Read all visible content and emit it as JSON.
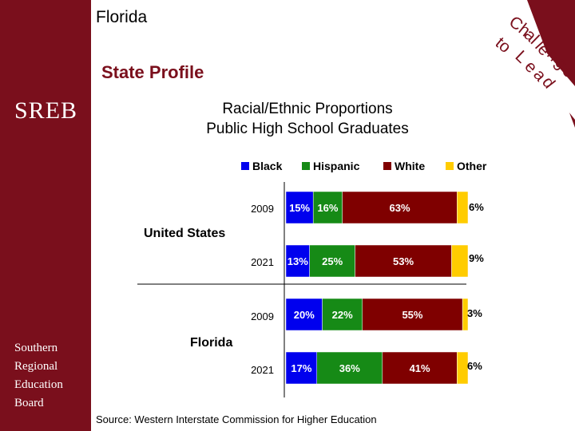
{
  "header": {
    "state": "Florida",
    "subtitle": "State Profile",
    "corner_text": [
      "Ch",
      "al",
      "le",
      "n",
      "g",
      "e",
      "to",
      "L",
      "e",
      "a",
      "d"
    ]
  },
  "sidebar": {
    "logo": "SREB",
    "org_lines": [
      "Southern",
      "Regional",
      "Education",
      "Board"
    ]
  },
  "source": "Source: Western Interstate Commission for Higher Education",
  "colors": {
    "black": "#0000ee",
    "hispanic": "#168a16",
    "white": "#7f0000",
    "other": "#ffcc00",
    "brand": "#7a0f1c"
  },
  "chart_data": {
    "type": "bar",
    "orientation": "horizontal",
    "stacked": true,
    "title": [
      "Racial/Ethnic Proportions",
      "Public High School Graduates"
    ],
    "legend": [
      "Black",
      "Hispanic",
      "White",
      "Other"
    ],
    "groups": [
      "United States",
      "Florida"
    ],
    "categories": [
      "2009",
      "2021",
      "2009",
      "2021"
    ],
    "series": [
      {
        "name": "Black",
        "values": [
          15,
          13,
          20,
          17
        ]
      },
      {
        "name": "Hispanic",
        "values": [
          16,
          25,
          22,
          36
        ]
      },
      {
        "name": "White",
        "values": [
          63,
          53,
          55,
          41
        ]
      },
      {
        "name": "Other",
        "values": [
          6,
          9,
          3,
          6
        ]
      }
    ],
    "labels": [
      [
        "15%",
        "16%",
        "63%",
        "6%"
      ],
      [
        "13%",
        "25%",
        "53%",
        "9%"
      ],
      [
        "20%",
        "22%",
        "55%",
        "3%"
      ],
      [
        "17%",
        "36%",
        "41%",
        "6%"
      ]
    ],
    "xlim": [
      0,
      100
    ]
  }
}
